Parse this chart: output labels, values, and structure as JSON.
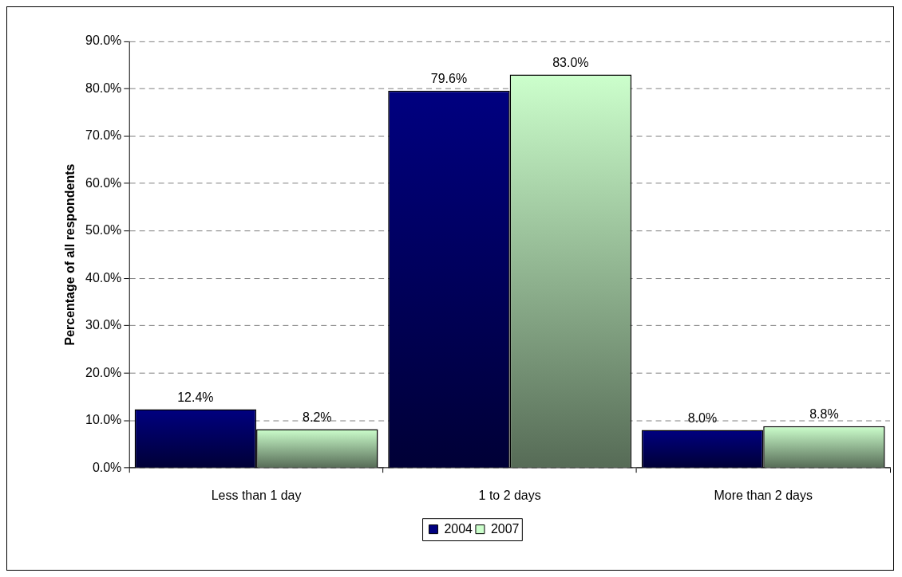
{
  "chart_data": {
    "type": "bar",
    "ylabel": "Percentage of all respondents",
    "categories": [
      "Less than 1 day",
      "1 to 2 days",
      "More than 2 days"
    ],
    "series": [
      {
        "name": "2004",
        "color": "#000080",
        "values": [
          12.4,
          79.6,
          8.0
        ],
        "value_labels": [
          "12.4%",
          "79.6%",
          "8.0%"
        ]
      },
      {
        "name": "2007",
        "color": "#ccffcc",
        "values": [
          8.2,
          83.0,
          8.8
        ],
        "value_labels": [
          "8.2%",
          "83.0%",
          "8.8%"
        ]
      }
    ],
    "ylim": [
      0,
      90
    ],
    "yticks": [
      {
        "value": 0,
        "label": "0.0%"
      },
      {
        "value": 10,
        "label": "10.0%"
      },
      {
        "value": 20,
        "label": "20.0%"
      },
      {
        "value": 30,
        "label": "30.0%"
      },
      {
        "value": 40,
        "label": "40.0%"
      },
      {
        "value": 50,
        "label": "50.0%"
      },
      {
        "value": 60,
        "label": "60.0%"
      },
      {
        "value": 70,
        "label": "70.0%"
      },
      {
        "value": 80,
        "label": "80.0%"
      },
      {
        "value": 90,
        "label": "90.0%"
      }
    ],
    "grid": "y",
    "legend": "bottom"
  }
}
